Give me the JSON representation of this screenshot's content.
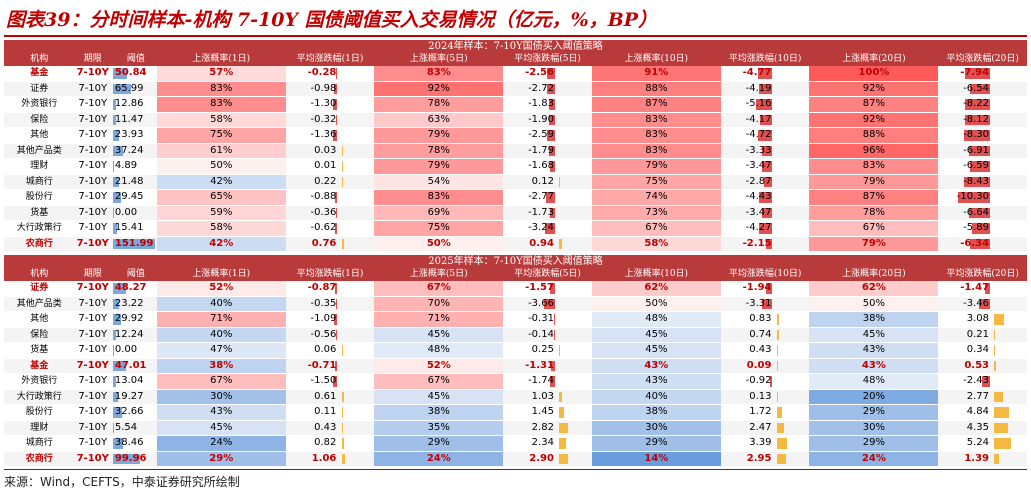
{
  "title": "图表39：分时间样本-机构 7-10Y 国债阈值买入交易情况（亿元，%，BP）",
  "source": "来源：Wind，CEFTS，中泰证券研究所绘制",
  "colors": {
    "header": "#b93a3a",
    "highlight": "#c00000",
    "threshold_bar": "#7da7d8",
    "pos_bar": "#f5b942",
    "neg_bar": "#e05050"
  },
  "headers": [
    "机构",
    "期限",
    "阈值",
    "上涨概率(1日)",
    "平均涨跌幅(1日)",
    "上涨概率(5日)",
    "平均涨跌幅(5日)",
    "上涨概率(10日)",
    "平均涨跌幅(10日)",
    "上涨概率(20日)",
    "平均涨跌幅(20日)"
  ],
  "sections": [
    {
      "banner": "2024年样本：7-10Y国债买入阈值策略",
      "rows": [
        {
          "inst": "基金",
          "term": "7-10Y",
          "thr": "50.84",
          "p1": "57%",
          "a1": "-0.28",
          "p5": "83%",
          "a5": "-2.56",
          "p10": "91%",
          "a10": "-4.77",
          "p20": "100%",
          "a20": "-7.94",
          "hl": true
        },
        {
          "inst": "证券",
          "term": "7-10Y",
          "thr": "65.99",
          "p1": "83%",
          "a1": "-0.98",
          "p5": "92%",
          "a5": "-2.72",
          "p10": "88%",
          "a10": "-4.19",
          "p20": "92%",
          "a20": "-6.54"
        },
        {
          "inst": "外资银行",
          "term": "7-10Y",
          "thr": "12.86",
          "p1": "83%",
          "a1": "-1.30",
          "p5": "78%",
          "a5": "-1.83",
          "p10": "87%",
          "a10": "-5.16",
          "p20": "87%",
          "a20": "-8.22"
        },
        {
          "inst": "保险",
          "term": "7-10Y",
          "thr": "11.47",
          "p1": "58%",
          "a1": "-0.32",
          "p5": "63%",
          "a5": "-1.90",
          "p10": "83%",
          "a10": "-4.17",
          "p20": "92%",
          "a20": "-8.12"
        },
        {
          "inst": "其他",
          "term": "7-10Y",
          "thr": "23.93",
          "p1": "75%",
          "a1": "-1.36",
          "p5": "79%",
          "a5": "-2.59",
          "p10": "83%",
          "a10": "-4.72",
          "p20": "88%",
          "a20": "-8.30"
        },
        {
          "inst": "其他产品类",
          "term": "7-10Y",
          "thr": "37.24",
          "p1": "61%",
          "a1": "0.03",
          "p5": "78%",
          "a5": "-1.79",
          "p10": "83%",
          "a10": "-3.33",
          "p20": "96%",
          "a20": "-6.91"
        },
        {
          "inst": "理财",
          "term": "7-10Y",
          "thr": "4.89",
          "p1": "50%",
          "a1": "0.01",
          "p5": "79%",
          "a5": "-1.68",
          "p10": "79%",
          "a10": "-3.47",
          "p20": "83%",
          "a20": "-6.59"
        },
        {
          "inst": "城商行",
          "term": "7-10Y",
          "thr": "21.48",
          "p1": "42%",
          "a1": "0.22",
          "p5": "54%",
          "a5": "0.12",
          "p10": "75%",
          "a10": "-2.87",
          "p20": "79%",
          "a20": "-8.43"
        },
        {
          "inst": "股份行",
          "term": "7-10Y",
          "thr": "29.45",
          "p1": "65%",
          "a1": "-0.88",
          "p5": "83%",
          "a5": "-2.77",
          "p10": "74%",
          "a10": "-4.43",
          "p20": "87%",
          "a20": "-10.30"
        },
        {
          "inst": "货基",
          "term": "7-10Y",
          "thr": "0.00",
          "p1": "59%",
          "a1": "-0.36",
          "p5": "69%",
          "a5": "-1.73",
          "p10": "73%",
          "a10": "-3.47",
          "p20": "78%",
          "a20": "-6.64"
        },
        {
          "inst": "大行政策行",
          "term": "7-10Y",
          "thr": "15.41",
          "p1": "58%",
          "a1": "-0.62",
          "p5": "75%",
          "a5": "-3.24",
          "p10": "67%",
          "a10": "-4.27",
          "p20": "67%",
          "a20": "-5.89"
        },
        {
          "inst": "农商行",
          "term": "7-10Y",
          "thr": "151.99",
          "p1": "42%",
          "a1": "0.76",
          "p5": "50%",
          "a5": "0.94",
          "p10": "58%",
          "a10": "-2.15",
          "p20": "79%",
          "a20": "-6.34",
          "hl": true
        }
      ]
    },
    {
      "banner": "2025年样本：7-10Y国债买入阈值策略",
      "rows": [
        {
          "inst": "证券",
          "term": "7-10Y",
          "thr": "48.27",
          "p1": "52%",
          "a1": "-0.87",
          "p5": "67%",
          "a5": "-1.57",
          "p10": "62%",
          "a10": "-1.94",
          "p20": "62%",
          "a20": "-1.47",
          "hl": true
        },
        {
          "inst": "其他产品类",
          "term": "7-10Y",
          "thr": "23.22",
          "p1": "40%",
          "a1": "-0.35",
          "p5": "70%",
          "a5": "-3.66",
          "p10": "50%",
          "a10": "-3.31",
          "p20": "50%",
          "a20": "-3.46"
        },
        {
          "inst": "其他",
          "term": "7-10Y",
          "thr": "29.92",
          "p1": "71%",
          "a1": "-1.09",
          "p5": "71%",
          "a5": "-0.31",
          "p10": "48%",
          "a10": "0.83",
          "p20": "38%",
          "a20": "3.08"
        },
        {
          "inst": "保险",
          "term": "7-10Y",
          "thr": "12.24",
          "p1": "40%",
          "a1": "-0.56",
          "p5": "45%",
          "a5": "-0.14",
          "p10": "45%",
          "a10": "0.74",
          "p20": "45%",
          "a20": "0.21"
        },
        {
          "inst": "货基",
          "term": "7-10Y",
          "thr": "0.00",
          "p1": "47%",
          "a1": "0.06",
          "p5": "48%",
          "a5": "0.25",
          "p10": "45%",
          "a10": "0.43",
          "p20": "43%",
          "a20": "0.34"
        },
        {
          "inst": "基金",
          "term": "7-10Y",
          "thr": "47.01",
          "p1": "38%",
          "a1": "-0.71",
          "p5": "52%",
          "a5": "-1.31",
          "p10": "43%",
          "a10": "0.09",
          "p20": "43%",
          "a20": "0.53",
          "hl": true
        },
        {
          "inst": "外资银行",
          "term": "7-10Y",
          "thr": "13.04",
          "p1": "67%",
          "a1": "-1.50",
          "p5": "67%",
          "a5": "-1.74",
          "p10": "43%",
          "a10": "-0.92",
          "p20": "48%",
          "a20": "-2.43"
        },
        {
          "inst": "大行政策行",
          "term": "7-10Y",
          "thr": "19.27",
          "p1": "30%",
          "a1": "0.61",
          "p5": "45%",
          "a5": "1.03",
          "p10": "40%",
          "a10": "0.13",
          "p20": "20%",
          "a20": "2.77"
        },
        {
          "inst": "股份行",
          "term": "7-10Y",
          "thr": "32.66",
          "p1": "43%",
          "a1": "0.11",
          "p5": "38%",
          "a5": "1.45",
          "p10": "38%",
          "a10": "1.72",
          "p20": "29%",
          "a20": "4.84"
        },
        {
          "inst": "理财",
          "term": "7-10Y",
          "thr": "5.54",
          "p1": "45%",
          "a1": "0.43",
          "p5": "35%",
          "a5": "2.82",
          "p10": "30%",
          "a10": "2.47",
          "p20": "30%",
          "a20": "4.35"
        },
        {
          "inst": "城商行",
          "term": "7-10Y",
          "thr": "38.46",
          "p1": "24%",
          "a1": "0.82",
          "p5": "29%",
          "a5": "2.34",
          "p10": "29%",
          "a10": "3.39",
          "p20": "29%",
          "a20": "5.24"
        },
        {
          "inst": "农商行",
          "term": "7-10Y",
          "thr": "99.96",
          "p1": "29%",
          "a1": "1.06",
          "p5": "24%",
          "a5": "2.90",
          "p10": "14%",
          "a10": "2.95",
          "p20": "24%",
          "a20": "1.39",
          "hl": true
        }
      ]
    }
  ]
}
